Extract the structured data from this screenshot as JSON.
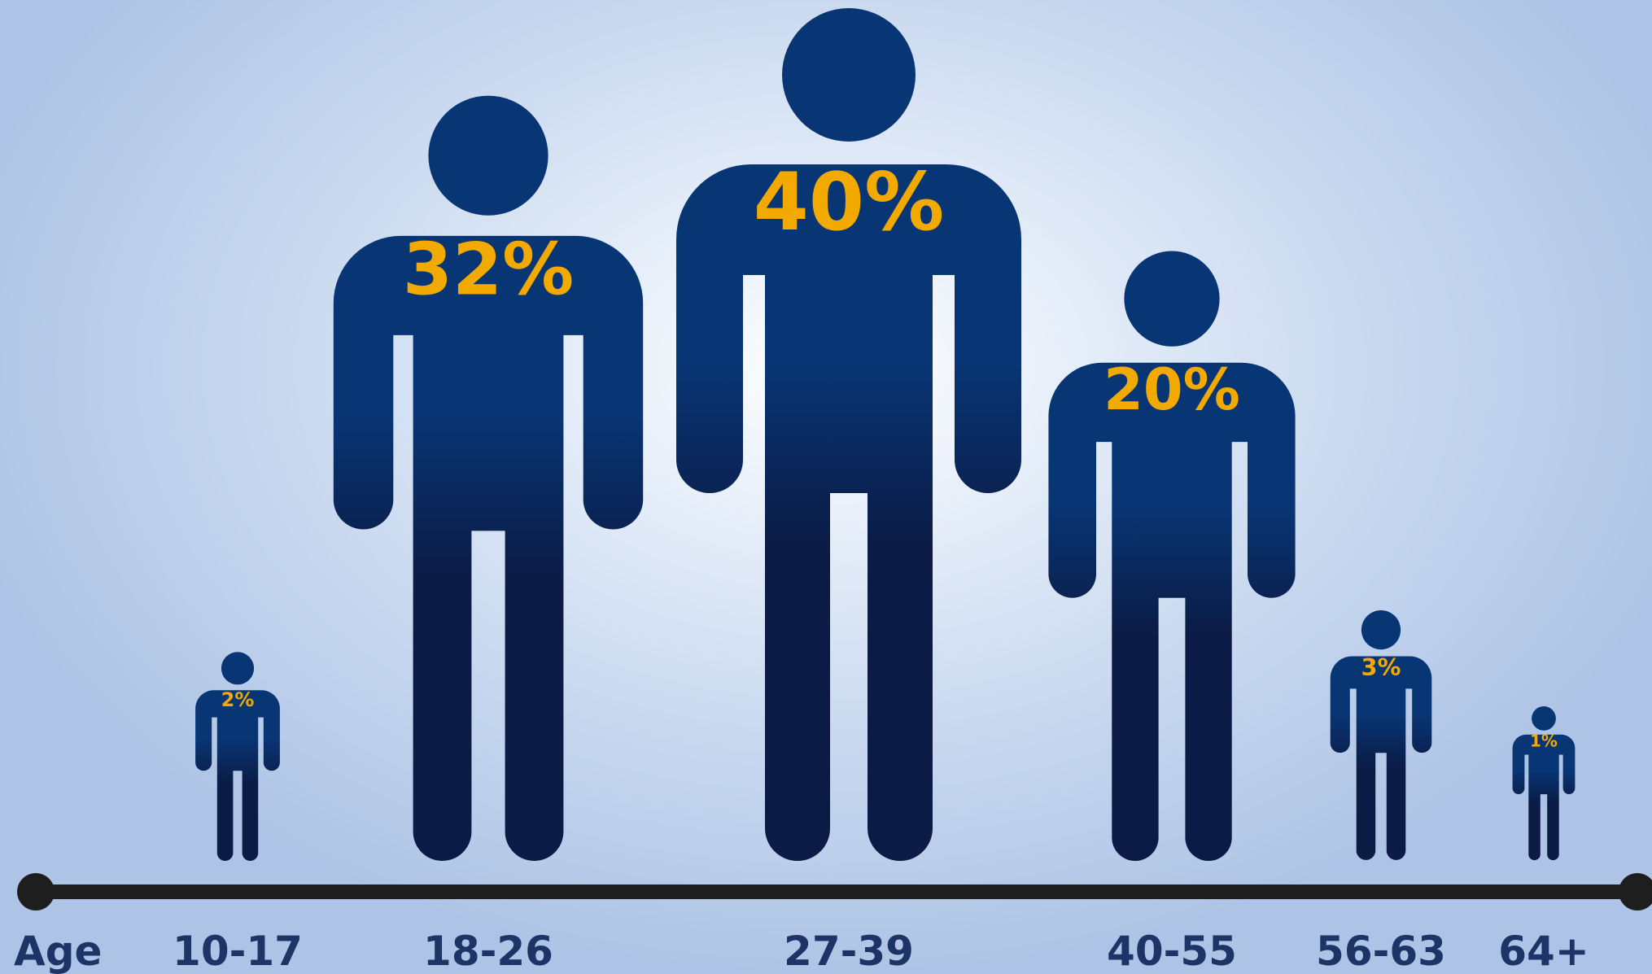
{
  "chart_data": {
    "type": "bar",
    "xlabel": "Age",
    "categories": [
      "10-17",
      "18-26",
      "27-39",
      "40-55",
      "56-63",
      "64+"
    ],
    "values": [
      2,
      32,
      40,
      20,
      3,
      1
    ],
    "value_labels": [
      "2%",
      "32%",
      "40%",
      "20%",
      "3%",
      "1%"
    ],
    "unit": "%",
    "mark_shape": "person-icon",
    "grid": false,
    "legend": "none"
  },
  "colors": {
    "figure_top": "#083675",
    "figure_bottom": "#0b1b45",
    "label_accent": "#f2a900",
    "axis_line": "#1e1e1e",
    "text_dark": "#1f3466",
    "background_center": "#ffffff",
    "background_edge": "#aec4e6"
  }
}
